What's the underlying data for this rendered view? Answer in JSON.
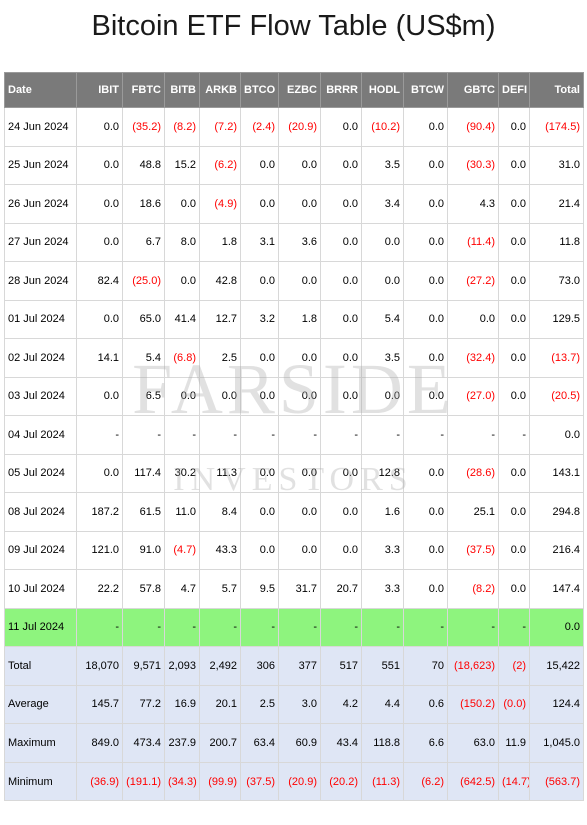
{
  "title": "Bitcoin ETF Flow Table (US$m)",
  "watermark": {
    "line1": "FARSIDE",
    "line2": "INVESTORS"
  },
  "colors": {
    "header_bg": "#7a7a7a",
    "highlight_row": "#8ef47e",
    "summary_bg": "#dfe6f5",
    "negative": "#ff0000"
  },
  "columns": [
    "Date",
    "IBIT",
    "FBTC",
    "BITB",
    "ARKB",
    "BTCO",
    "EZBC",
    "BRRR",
    "HODL",
    "BTCW",
    "GBTC",
    "DEFI",
    "Total"
  ],
  "rows": [
    {
      "cells": [
        "24 Jun 2024",
        "0.0",
        "(35.2)",
        "(8.2)",
        "(7.2)",
        "(2.4)",
        "(20.9)",
        "0.0",
        "(10.2)",
        "0.0",
        "(90.4)",
        "0.0",
        "(174.5)"
      ]
    },
    {
      "cells": [
        "25 Jun 2024",
        "0.0",
        "48.8",
        "15.2",
        "(6.2)",
        "0.0",
        "0.0",
        "0.0",
        "3.5",
        "0.0",
        "(30.3)",
        "0.0",
        "31.0"
      ]
    },
    {
      "cells": [
        "26 Jun 2024",
        "0.0",
        "18.6",
        "0.0",
        "(4.9)",
        "0.0",
        "0.0",
        "0.0",
        "3.4",
        "0.0",
        "4.3",
        "0.0",
        "21.4"
      ]
    },
    {
      "cells": [
        "27 Jun 2024",
        "0.0",
        "6.7",
        "8.0",
        "1.8",
        "3.1",
        "3.6",
        "0.0",
        "0.0",
        "0.0",
        "(11.4)",
        "0.0",
        "11.8"
      ]
    },
    {
      "cells": [
        "28 Jun 2024",
        "82.4",
        "(25.0)",
        "0.0",
        "42.8",
        "0.0",
        "0.0",
        "0.0",
        "0.0",
        "0.0",
        "(27.2)",
        "0.0",
        "73.0"
      ]
    },
    {
      "cells": [
        "01 Jul 2024",
        "0.0",
        "65.0",
        "41.4",
        "12.7",
        "3.2",
        "1.8",
        "0.0",
        "5.4",
        "0.0",
        "0.0",
        "0.0",
        "129.5"
      ]
    },
    {
      "cells": [
        "02 Jul 2024",
        "14.1",
        "5.4",
        "(6.8)",
        "2.5",
        "0.0",
        "0.0",
        "0.0",
        "3.5",
        "0.0",
        "(32.4)",
        "0.0",
        "(13.7)"
      ]
    },
    {
      "cells": [
        "03 Jul 2024",
        "0.0",
        "6.5",
        "0.0",
        "0.0",
        "0.0",
        "0.0",
        "0.0",
        "0.0",
        "0.0",
        "(27.0)",
        "0.0",
        "(20.5)"
      ]
    },
    {
      "cells": [
        "04 Jul 2024",
        "-",
        "-",
        "-",
        "-",
        "-",
        "-",
        "-",
        "-",
        "-",
        "-",
        "-",
        "0.0"
      ]
    },
    {
      "cells": [
        "05 Jul 2024",
        "0.0",
        "117.4",
        "30.2",
        "11.3",
        "0.0",
        "0.0",
        "0.0",
        "12.8",
        "0.0",
        "(28.6)",
        "0.0",
        "143.1"
      ]
    },
    {
      "cells": [
        "08 Jul 2024",
        "187.2",
        "61.5",
        "11.0",
        "8.4",
        "0.0",
        "0.0",
        "0.0",
        "1.6",
        "0.0",
        "25.1",
        "0.0",
        "294.8"
      ]
    },
    {
      "cells": [
        "09 Jul 2024",
        "121.0",
        "91.0",
        "(4.7)",
        "43.3",
        "0.0",
        "0.0",
        "0.0",
        "3.3",
        "0.0",
        "(37.5)",
        "0.0",
        "216.4"
      ]
    },
    {
      "cells": [
        "10 Jul 2024",
        "22.2",
        "57.8",
        "4.7",
        "5.7",
        "9.5",
        "31.7",
        "20.7",
        "3.3",
        "0.0",
        "(8.2)",
        "0.0",
        "147.4"
      ]
    },
    {
      "cells": [
        "11 Jul 2024",
        "-",
        "-",
        "-",
        "-",
        "-",
        "-",
        "-",
        "-",
        "-",
        "-",
        "-",
        "0.0"
      ],
      "highlight": true
    }
  ],
  "summary": [
    {
      "cells": [
        "Total",
        "18,070",
        "9,571",
        "2,093",
        "2,492",
        "306",
        "377",
        "517",
        "551",
        "70",
        "(18,623)",
        "(2)",
        "15,422"
      ]
    },
    {
      "cells": [
        "Average",
        "145.7",
        "77.2",
        "16.9",
        "20.1",
        "2.5",
        "3.0",
        "4.2",
        "4.4",
        "0.6",
        "(150.2)",
        "(0.0)",
        "124.4"
      ]
    },
    {
      "cells": [
        "Maximum",
        "849.0",
        "473.4",
        "237.9",
        "200.7",
        "63.4",
        "60.9",
        "43.4",
        "118.8",
        "6.6",
        "63.0",
        "11.9",
        "1,045.0"
      ]
    },
    {
      "cells": [
        "Minimum",
        "(36.9)",
        "(191.1)",
        "(34.3)",
        "(99.9)",
        "(37.5)",
        "(20.9)",
        "(20.2)",
        "(11.3)",
        "(6.2)",
        "(642.5)",
        "(14.7)",
        "(563.7)"
      ]
    }
  ]
}
